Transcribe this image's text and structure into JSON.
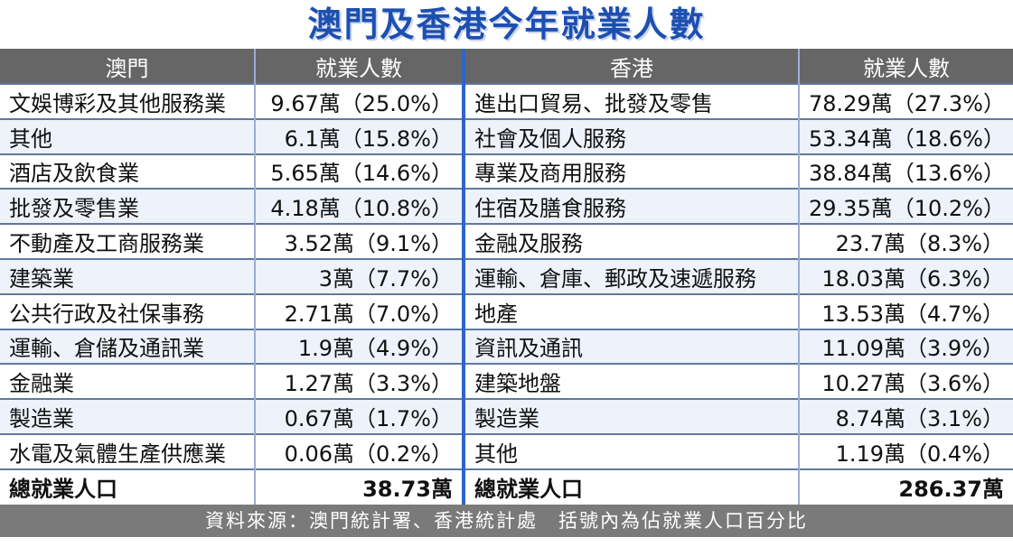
{
  "title": "澳門及香港今年就業人數",
  "headers": {
    "macau_col": "澳門",
    "macau_count_col": "就業人數",
    "hk_col": "香港",
    "hk_count_col": "就業人數"
  },
  "rows": [
    {
      "macau": "文娛博彩及其他服務業",
      "macau_val": "9.67萬（25.0%）",
      "hk": "進出口貿易、批發及零售",
      "hk_val": "78.29萬（27.3%）"
    },
    {
      "macau": "其他",
      "macau_val": "6.1萬（15.8%）",
      "hk": "社會及個人服務",
      "hk_val": "53.34萬（18.6%）"
    },
    {
      "macau": "酒店及飲食業",
      "macau_val": "5.65萬（14.6%）",
      "hk": "專業及商用服務",
      "hk_val": "38.84萬（13.6%）"
    },
    {
      "macau": "批發及零售業",
      "macau_val": "4.18萬（10.8%）",
      "hk": "住宿及膳食服務",
      "hk_val": "29.35萬（10.2%）"
    },
    {
      "macau": "不動產及工商服務業",
      "macau_val": "3.52萬（9.1%）",
      "hk": "金融及服務",
      "hk_val": "23.7萬（8.3%）"
    },
    {
      "macau": "建築業",
      "macau_val": "3萬（7.7%）",
      "hk": "運輸、倉庫、郵政及速遞服務",
      "hk_val": "18.03萬（6.3%）"
    },
    {
      "macau": "公共行政及社保事務",
      "macau_val": "2.71萬（7.0%）",
      "hk": "地產",
      "hk_val": "13.53萬（4.7%）"
    },
    {
      "macau": "運輸、倉儲及通訊業",
      "macau_val": "1.9萬（4.9%）",
      "hk": "資訊及通訊",
      "hk_val": "11.09萬（3.9%）"
    },
    {
      "macau": "金融業",
      "macau_val": "1.27萬（3.3%）",
      "hk": "建築地盤",
      "hk_val": "10.27萬（3.6%）"
    },
    {
      "macau": "製造業",
      "macau_val": "0.67萬（1.7%）",
      "hk": "製造業",
      "hk_val": "8.74萬（3.1%）"
    },
    {
      "macau": "水電及氣體生產供應業",
      "macau_val": "0.06萬（0.2%）",
      "hk": "其他",
      "hk_val": "1.19萬（0.4%）"
    }
  ],
  "total": {
    "macau_label": "總就業人口",
    "macau_val": "38.73萬",
    "hk_label": "總就業人口",
    "hk_val": "286.37萬"
  },
  "footer": "資料來源：澳門統計署、香港統計處　括號內為佔就業人口百分比",
  "colors": {
    "title": "#1d4fb0",
    "header_bg": "#666666",
    "footer_bg": "#7a7a7a",
    "divider": "#2e64c8"
  }
}
